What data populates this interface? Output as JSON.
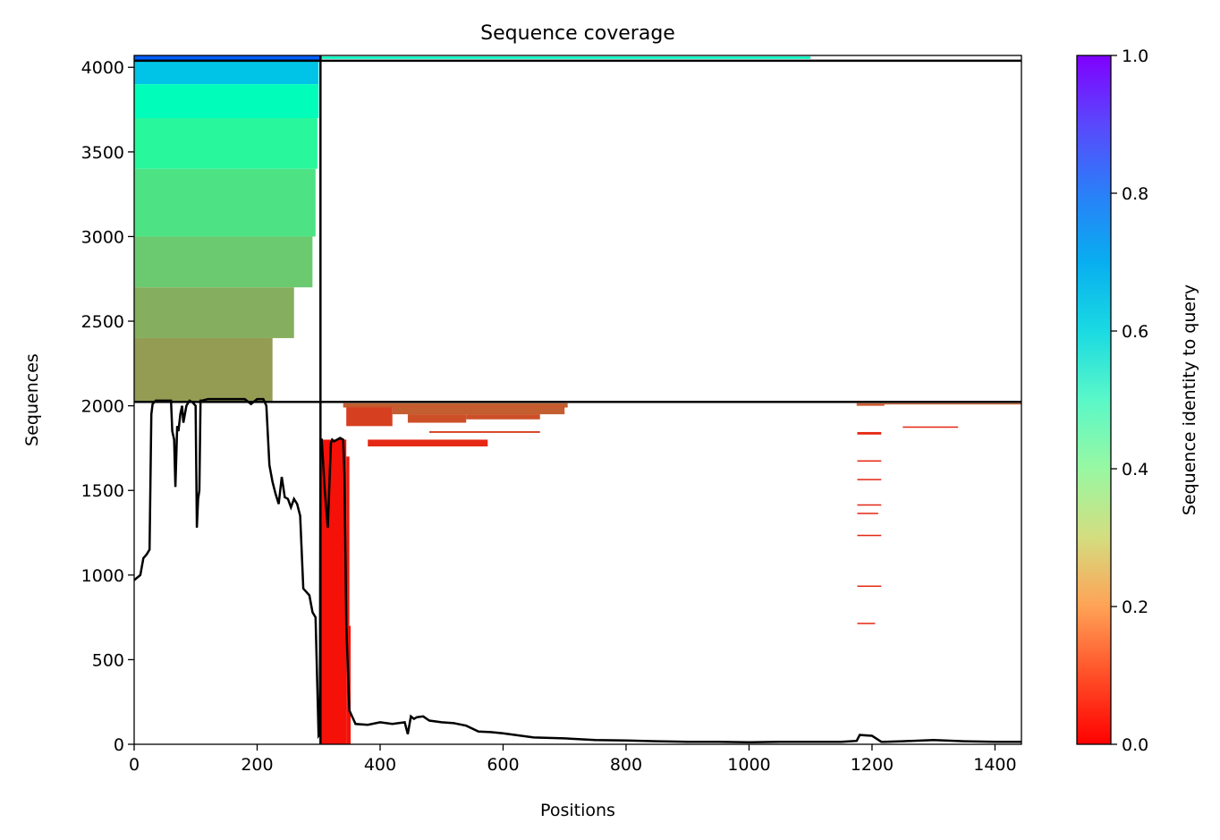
{
  "chart_data": {
    "type": "heatmap",
    "title": "Sequence coverage",
    "xlabel": "Positions",
    "ylabel": "Sequences",
    "xlim": [
      0,
      1443
    ],
    "ylim": [
      0,
      4070
    ],
    "x_ticks": [
      "0",
      "200",
      "400",
      "600",
      "800",
      "1000",
      "1200",
      "1400"
    ],
    "x_tick_values": [
      0,
      200,
      400,
      600,
      800,
      1000,
      1200,
      1400
    ],
    "y_ticks": [
      "0",
      "500",
      "1000",
      "1500",
      "2000",
      "2500",
      "3000",
      "3500",
      "4000"
    ],
    "y_tick_values": [
      0,
      500,
      1000,
      1500,
      2000,
      2500,
      3000,
      3500,
      4000
    ],
    "colorbar": {
      "label": "Sequence identity to query",
      "min": 0.0,
      "max": 1.0,
      "ticks": [
        "0.0",
        "0.2",
        "0.4",
        "0.6",
        "0.8",
        "1.0"
      ],
      "tick_values": [
        0.0,
        0.2,
        0.4,
        0.6,
        0.8,
        1.0
      ],
      "colormap": "rainbow_r"
    },
    "divider_lines": {
      "vertical_x": 303,
      "horizontal_y": [
        2023,
        4039
      ]
    },
    "coverage_blocks": [
      {
        "x0": 0,
        "x1": 303,
        "y0": 4039,
        "y1": 4070,
        "identity": 0.88
      },
      {
        "x0": 0,
        "x1": 300,
        "y0": 3900,
        "y1": 4039,
        "identity": 0.72
      },
      {
        "x0": 0,
        "x1": 300,
        "y0": 3700,
        "y1": 3900,
        "identity": 0.52
      },
      {
        "x0": 0,
        "x1": 298,
        "y0": 3400,
        "y1": 3700,
        "identity": 0.42
      },
      {
        "x0": 0,
        "x1": 295,
        "y0": 3000,
        "y1": 3400,
        "identity": 0.35
      },
      {
        "x0": 0,
        "x1": 290,
        "y0": 2700,
        "y1": 3000,
        "identity": 0.29
      },
      {
        "x0": 0,
        "x1": 260,
        "y0": 2400,
        "y1": 2700,
        "identity": 0.24
      },
      {
        "x0": 0,
        "x1": 225,
        "y0": 2023,
        "y1": 2400,
        "identity": 0.21
      },
      {
        "x0": 303,
        "x1": 345,
        "y0": 0,
        "y1": 1800,
        "identity": 0.02
      },
      {
        "x0": 345,
        "x1": 352,
        "y0": 0,
        "y1": 700,
        "identity": 0.02
      },
      {
        "x0": 345,
        "x1": 350,
        "y0": 700,
        "y1": 1700,
        "identity": 0.03
      },
      {
        "x0": 340,
        "x1": 705,
        "y0": 1990,
        "y1": 2000,
        "identity": 0.1
      },
      {
        "x0": 340,
        "x1": 705,
        "y0": 1995,
        "y1": 2015,
        "identity": 0.12
      },
      {
        "x0": 345,
        "x1": 420,
        "y0": 1880,
        "y1": 1990,
        "identity": 0.08
      },
      {
        "x0": 420,
        "x1": 700,
        "y0": 1950,
        "y1": 1990,
        "identity": 0.12
      },
      {
        "x0": 445,
        "x1": 540,
        "y0": 1900,
        "y1": 1950,
        "identity": 0.1
      },
      {
        "x0": 540,
        "x1": 660,
        "y0": 1920,
        "y1": 1950,
        "identity": 0.1
      },
      {
        "x0": 480,
        "x1": 660,
        "y0": 1840,
        "y1": 1850,
        "identity": 0.08
      },
      {
        "x0": 380,
        "x1": 575,
        "y0": 1760,
        "y1": 1800,
        "identity": 0.05
      },
      {
        "x0": 1176,
        "x1": 1215,
        "y0": 1830,
        "y1": 1845,
        "identity": 0.05
      },
      {
        "x0": 1250,
        "x1": 1340,
        "y0": 1870,
        "y1": 1878,
        "identity": 0.05
      },
      {
        "x0": 1175,
        "x1": 1220,
        "y0": 2000,
        "y1": 2008,
        "identity": 0.1
      },
      {
        "x0": 1175,
        "x1": 1443,
        "y0": 2008,
        "y1": 2015,
        "identity": 0.12
      },
      {
        "x0": 1176,
        "x1": 1215,
        "y0": 1670,
        "y1": 1678,
        "identity": 0.05
      },
      {
        "x0": 1176,
        "x1": 1215,
        "y0": 1560,
        "y1": 1568,
        "identity": 0.05
      },
      {
        "x0": 1176,
        "x1": 1215,
        "y0": 1410,
        "y1": 1418,
        "identity": 0.05
      },
      {
        "x0": 1176,
        "x1": 1210,
        "y0": 1360,
        "y1": 1368,
        "identity": 0.05
      },
      {
        "x0": 1176,
        "x1": 1215,
        "y0": 1230,
        "y1": 1238,
        "identity": 0.05
      },
      {
        "x0": 1176,
        "x1": 1215,
        "y0": 930,
        "y1": 938,
        "identity": 0.05
      },
      {
        "x0": 1176,
        "x1": 1205,
        "y0": 710,
        "y1": 718,
        "identity": 0.05
      },
      {
        "x0": 303,
        "x1": 1100,
        "y0": 4050,
        "y1": 4064,
        "identity": 0.55
      }
    ],
    "coverage_line": {
      "x": [
        0,
        10,
        15,
        20,
        25,
        28,
        30,
        35,
        40,
        60,
        62,
        65,
        67,
        70,
        72,
        75,
        78,
        80,
        85,
        90,
        95,
        100,
        102,
        104,
        106,
        108,
        110,
        120,
        150,
        180,
        190,
        200,
        210,
        215,
        220,
        225,
        230,
        235,
        240,
        245,
        250,
        255,
        260,
        265,
        270,
        275,
        280,
        285,
        290,
        295,
        300,
        302,
        303,
        305,
        310,
        315,
        320,
        322,
        325,
        330,
        335,
        340,
        342,
        345,
        350,
        360,
        380,
        400,
        420,
        440,
        445,
        450,
        455,
        460,
        470,
        480,
        500,
        520,
        540,
        560,
        580,
        600,
        650,
        700,
        750,
        800,
        850,
        900,
        950,
        1000,
        1050,
        1100,
        1150,
        1175,
        1180,
        1200,
        1215,
        1220,
        1250,
        1300,
        1350,
        1400,
        1443
      ],
      "y": [
        970,
        1000,
        1100,
        1120,
        1150,
        1950,
        2010,
        2030,
        2030,
        2030,
        1850,
        1800,
        1520,
        1880,
        1850,
        1950,
        2000,
        1900,
        2000,
        2030,
        2020,
        2000,
        1280,
        1450,
        1500,
        2030,
        2030,
        2040,
        2040,
        2040,
        2010,
        2040,
        2040,
        2000,
        1650,
        1550,
        1480,
        1420,
        1580,
        1460,
        1450,
        1400,
        1450,
        1420,
        1350,
        920,
        900,
        880,
        780,
        750,
        50,
        60,
        1800,
        1800,
        1500,
        1280,
        1780,
        1800,
        1790,
        1800,
        1810,
        1800,
        1600,
        700,
        200,
        120,
        115,
        130,
        120,
        130,
        60,
        165,
        150,
        160,
        165,
        140,
        130,
        125,
        110,
        75,
        72,
        65,
        40,
        35,
        25,
        22,
        18,
        15,
        15,
        12,
        15,
        15,
        15,
        20,
        55,
        50,
        15,
        15,
        18,
        25,
        18,
        15,
        15
      ]
    }
  }
}
